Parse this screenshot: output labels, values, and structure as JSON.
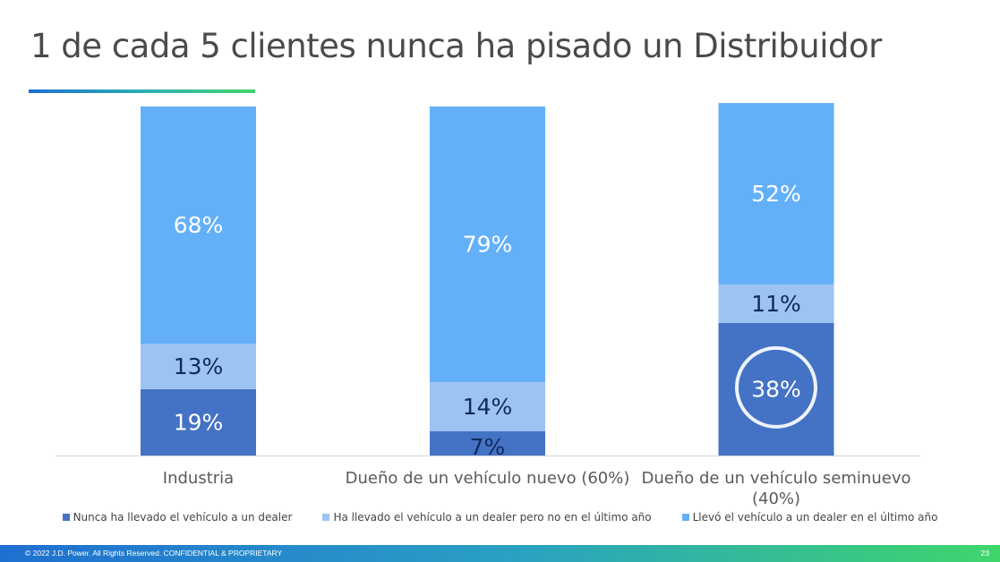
{
  "slide": {
    "title": "1 de cada 5 clientes nunca ha pisado un Distribuidor"
  },
  "chart_data": {
    "type": "bar",
    "stacked": true,
    "normalized_percent": true,
    "categories": [
      [
        "Industria"
      ],
      [
        "Dueño de un vehículo nuevo  (60%)"
      ],
      [
        "Dueño de un vehículo seminuevo",
        "(40%)"
      ]
    ],
    "series": [
      {
        "name": "Nunca ha llevado el vehículo a un dealer",
        "values": [
          19,
          7,
          38
        ],
        "labels": [
          "19%",
          "7%",
          "38%"
        ],
        "color": "#4472c4",
        "label_color": "#ffffff"
      },
      {
        "name": "Ha llevado el vehículo a un dealer pero no en el último año",
        "values": [
          13,
          14,
          11
        ],
        "labels": [
          "13%",
          "14%",
          "11%"
        ],
        "color": "#9dc3f3",
        "label_color": "#0e2a5c"
      },
      {
        "name": "Llevó el vehículo a un dealer en el último año",
        "values": [
          68,
          79,
          52
        ],
        "labels": [
          "68%",
          "79%",
          "52%"
        ],
        "color": "#63b0f9",
        "label_color": "#ffffff"
      }
    ],
    "label_colors_override": {
      "0_1": "#0e2a5c"
    },
    "highlight": {
      "series": 0,
      "category": 2,
      "shape": "circle"
    },
    "ylim": [
      0,
      100
    ],
    "grid": false,
    "legend_position": "bottom"
  },
  "footer": {
    "copyright": "© 2022 J.D. Power. All Rights Reserved. CONFIDENTIAL & PROPRIETARY",
    "page_number": "23"
  }
}
